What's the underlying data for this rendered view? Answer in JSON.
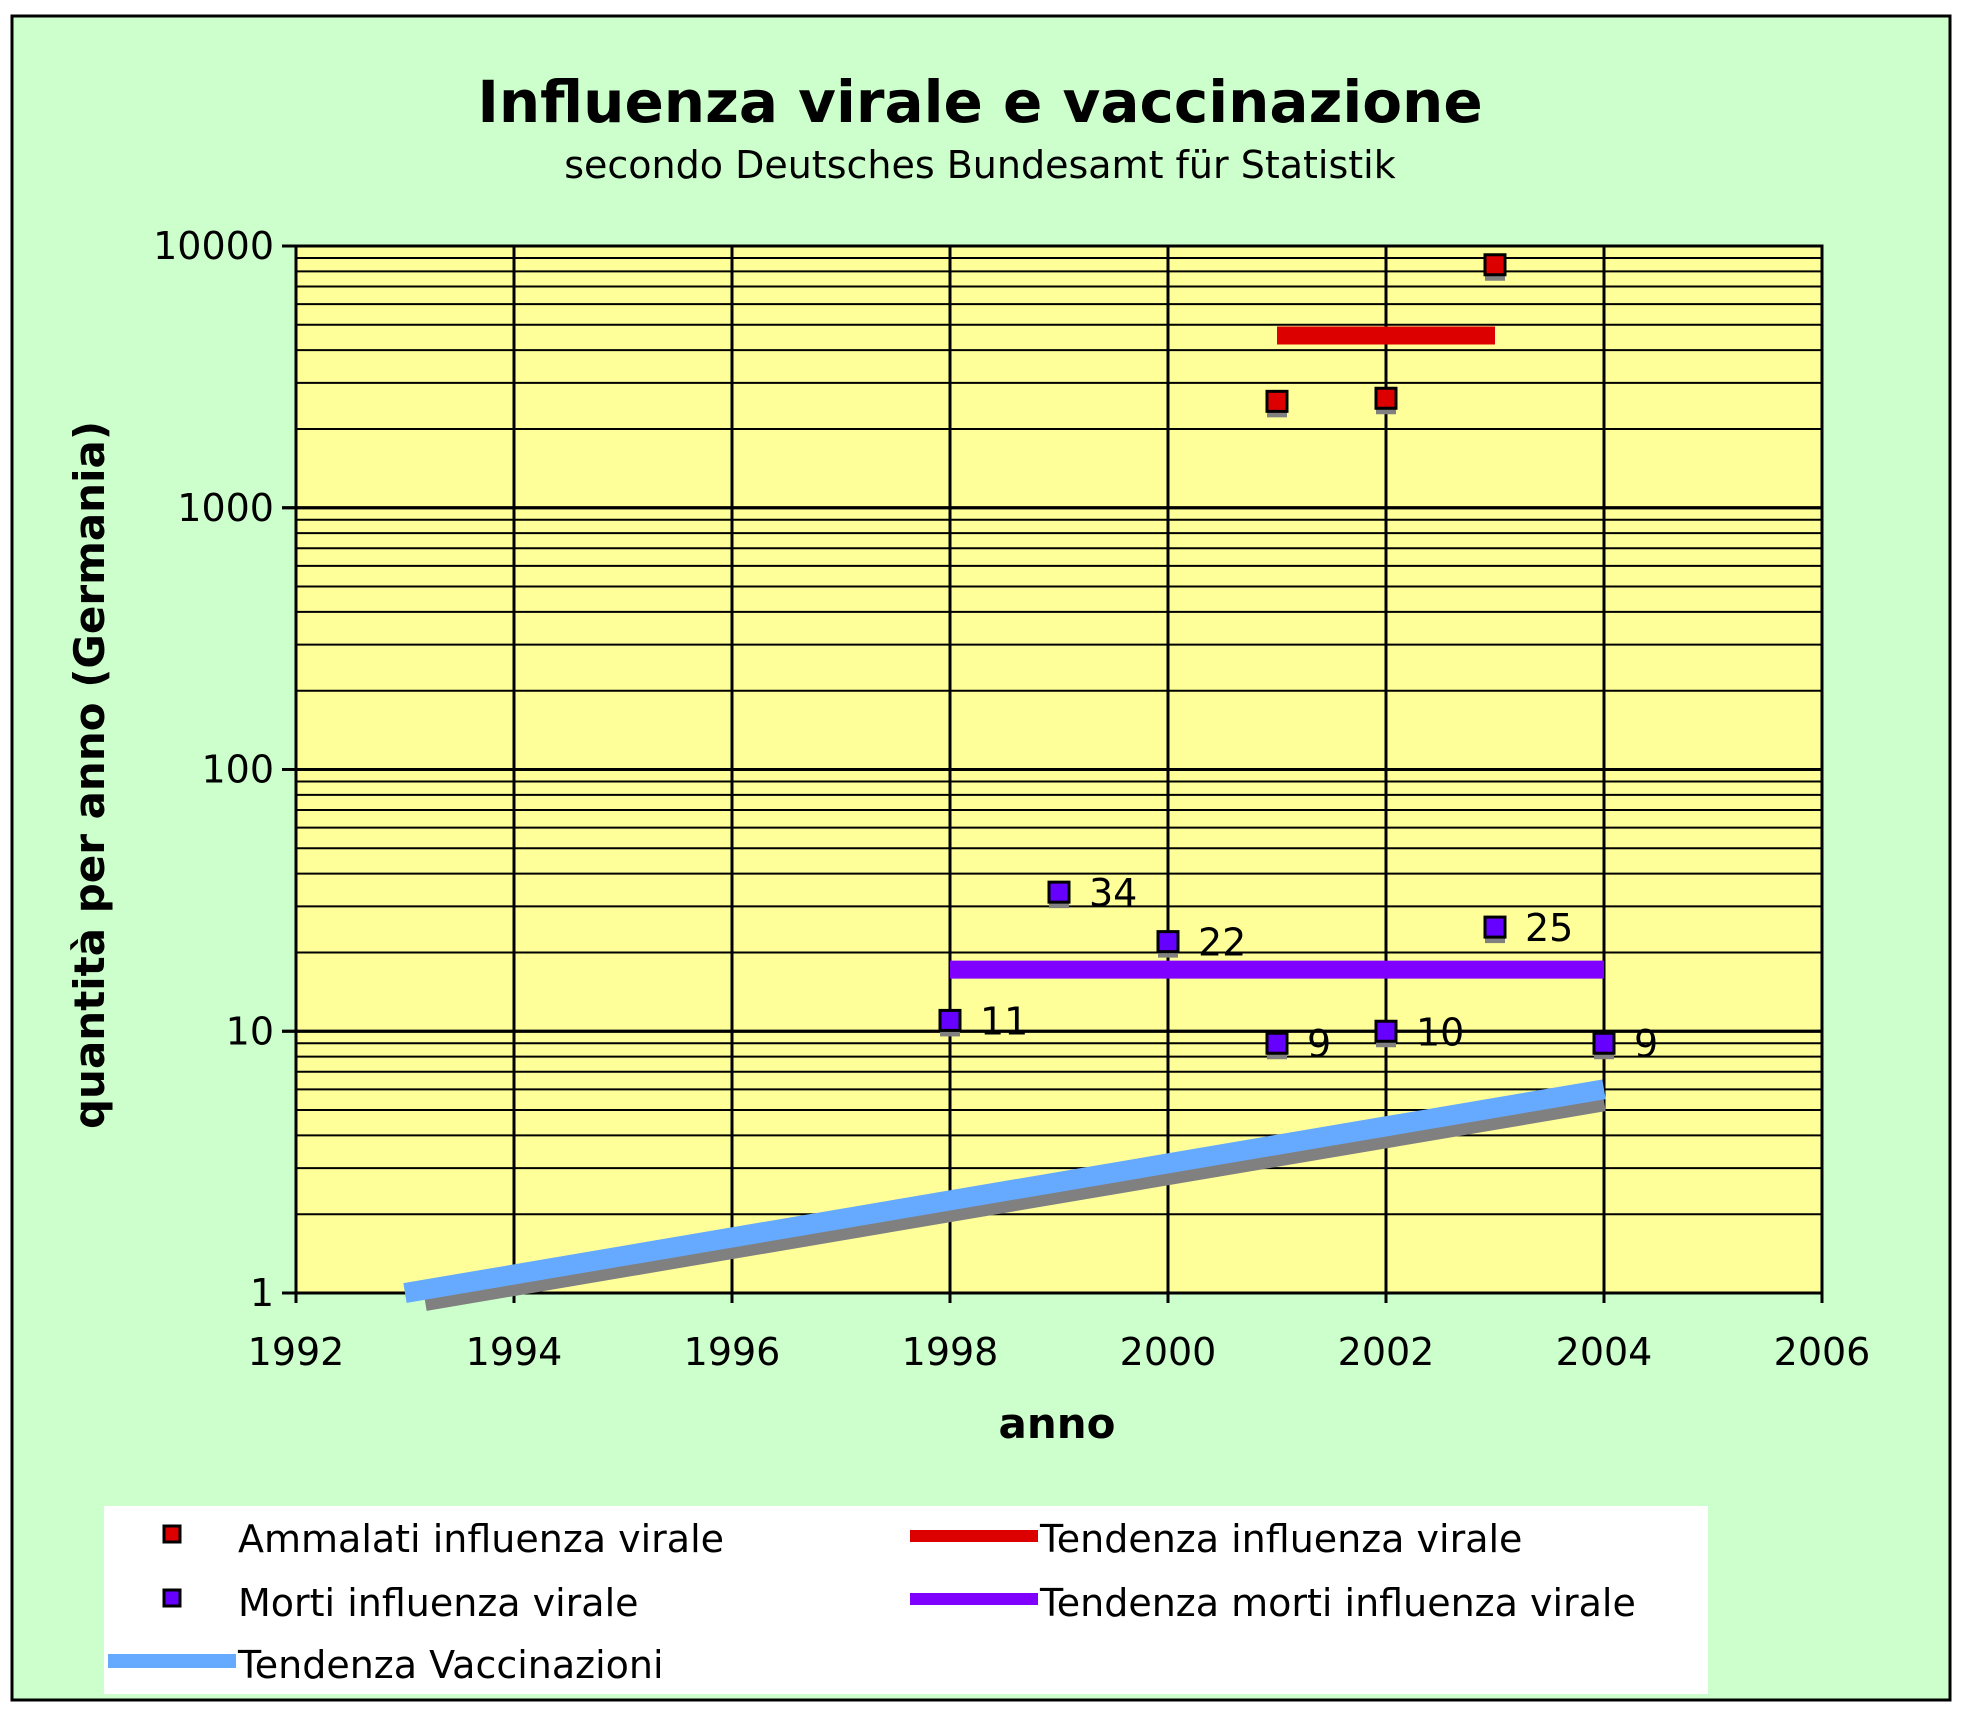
{
  "chart_data": {
    "type": "scatter",
    "title": "Influenza virale e vaccinazione",
    "subtitle": "secondo Deutsches Bundesamt für Statistik",
    "xlabel": "anno",
    "ylabel": "quantità per anno (Germania)",
    "xlim": [
      1992,
      2006
    ],
    "x_ticks": [
      "1992",
      "1994",
      "1996",
      "1998",
      "2000",
      "2002",
      "2004",
      "2006"
    ],
    "ylim": [
      1,
      10000
    ],
    "y_scale": "log",
    "y_ticks": [
      "1",
      "10",
      "100",
      "1000",
      "10000"
    ],
    "grid": true,
    "plot_background": "#ffff99",
    "chart_background": "#ccffcc",
    "legend_position": "bottom",
    "series": [
      {
        "name": "Ammalati influenza virale",
        "kind": "markers",
        "color": "#dd0000",
        "points": [
          {
            "x": 2001,
            "y": 2550
          },
          {
            "x": 2002,
            "y": 2620
          },
          {
            "x": 2003,
            "y": 8480
          }
        ]
      },
      {
        "name": "Morti influenza virale",
        "kind": "markers",
        "color": "#6600ff",
        "points": [
          {
            "x": 1998,
            "y": 11,
            "label": "11"
          },
          {
            "x": 1999,
            "y": 34,
            "label": "34"
          },
          {
            "x": 2000,
            "y": 22,
            "label": "22"
          },
          {
            "x": 2001,
            "y": 9,
            "label": "9"
          },
          {
            "x": 2002,
            "y": 10,
            "label": "10"
          },
          {
            "x": 2003,
            "y": 25,
            "label": "25"
          },
          {
            "x": 2004,
            "y": 9,
            "label": "9"
          }
        ]
      },
      {
        "name": "Tendenza influenza virale",
        "kind": "line",
        "color": "#dd0000",
        "points": [
          {
            "x": 2001,
            "y": 4550
          },
          {
            "x": 2003,
            "y": 4550
          }
        ]
      },
      {
        "name": "Tendenza morti influenza virale",
        "kind": "line",
        "color": "#7f00ff",
        "points": [
          {
            "x": 1998,
            "y": 17.2
          },
          {
            "x": 2004,
            "y": 17.2
          }
        ]
      },
      {
        "name": "Tendenza Vaccinazioni",
        "kind": "line",
        "color": "#66aaff",
        "points": [
          {
            "x": 1993,
            "y": 1.0
          },
          {
            "x": 2004,
            "y": 6.0
          }
        ]
      }
    ]
  },
  "legend": {
    "items": [
      {
        "label": "Ammalati influenza virale"
      },
      {
        "label": "Tendenza influenza virale"
      },
      {
        "label": "Morti influenza virale"
      },
      {
        "label": "Tendenza morti influenza virale"
      },
      {
        "label": "Tendenza Vaccinazioni"
      }
    ]
  }
}
